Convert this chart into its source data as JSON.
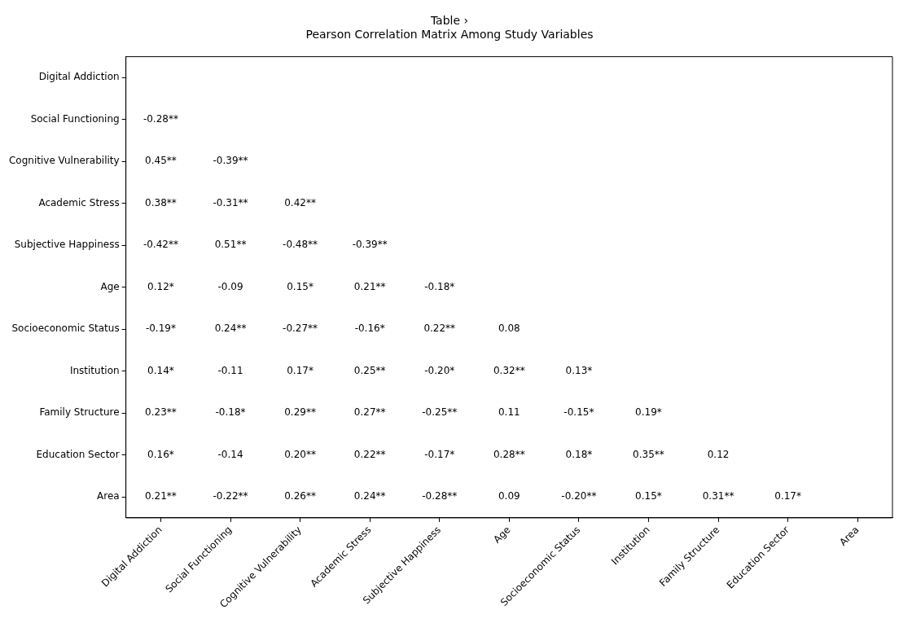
{
  "chart_data": {
    "type": "heatmap",
    "title": "Table ›",
    "subtitle": "Pearson Correlation Matrix Among Study Variables",
    "categories": [
      "Digital Addiction",
      "Social Functioning",
      "Cognitive Vulnerability",
      "Academic Stress",
      "Subjective Happiness",
      "Age",
      "Socioeconomic Status",
      "Institution",
      "Family Structure",
      "Education Sector",
      "Area"
    ],
    "y_categories": [
      "Digital Addiction",
      "Social Functioning",
      "Cognitive Vulnerability",
      "Academic Stress",
      "Subjective Happiness",
      "Age",
      "Socioeconomic Status",
      "Institution",
      "Family Structure",
      "Education Sector",
      "Area"
    ],
    "cells": [
      [
        null,
        null,
        null,
        null,
        null,
        null,
        null,
        null,
        null,
        null,
        null
      ],
      [
        -0.28,
        null,
        null,
        null,
        null,
        null,
        null,
        null,
        null,
        null,
        null
      ],
      [
        0.45,
        -0.39,
        null,
        null,
        null,
        null,
        null,
        null,
        null,
        null,
        null
      ],
      [
        0.38,
        -0.31,
        0.42,
        null,
        null,
        null,
        null,
        null,
        null,
        null,
        null
      ],
      [
        -0.42,
        0.51,
        -0.48,
        -0.39,
        null,
        null,
        null,
        null,
        null,
        null,
        null
      ],
      [
        0.12,
        -0.09,
        0.15,
        0.21,
        -0.18,
        null,
        null,
        null,
        null,
        null,
        null
      ],
      [
        -0.19,
        0.24,
        -0.27,
        -0.16,
        0.22,
        0.08,
        null,
        null,
        null,
        null,
        null
      ],
      [
        0.14,
        -0.11,
        0.17,
        0.25,
        -0.2,
        0.32,
        0.13,
        null,
        null,
        null,
        null
      ],
      [
        0.23,
        -0.18,
        0.29,
        0.27,
        -0.25,
        0.11,
        -0.15,
        0.19,
        null,
        null,
        null
      ],
      [
        0.16,
        -0.14,
        0.2,
        0.22,
        -0.17,
        0.28,
        0.18,
        0.35,
        0.12,
        null,
        null
      ],
      [
        0.21,
        -0.22,
        0.26,
        0.24,
        -0.28,
        0.09,
        -0.2,
        0.15,
        0.31,
        0.17,
        null
      ]
    ],
    "cell_labels": [
      [
        null,
        null,
        null,
        null,
        null,
        null,
        null,
        null,
        null,
        null,
        null
      ],
      [
        "-0.28**",
        null,
        null,
        null,
        null,
        null,
        null,
        null,
        null,
        null,
        null
      ],
      [
        "0.45**",
        "-0.39**",
        null,
        null,
        null,
        null,
        null,
        null,
        null,
        null,
        null
      ],
      [
        "0.38**",
        "-0.31**",
        "0.42**",
        null,
        null,
        null,
        null,
        null,
        null,
        null,
        null
      ],
      [
        "-0.42**",
        "0.51**",
        "-0.48**",
        "-0.39**",
        null,
        null,
        null,
        null,
        null,
        null,
        null
      ],
      [
        "0.12*",
        "-0.09",
        "0.15*",
        "0.21**",
        "-0.18*",
        null,
        null,
        null,
        null,
        null,
        null
      ],
      [
        "-0.19*",
        "0.24**",
        "-0.27**",
        "-0.16*",
        "0.22**",
        "0.08",
        null,
        null,
        null,
        null,
        null
      ],
      [
        "0.14*",
        "-0.11",
        "0.17*",
        "0.25**",
        "-0.20*",
        "0.32**",
        "0.13*",
        null,
        null,
        null,
        null
      ],
      [
        "0.23**",
        "-0.18*",
        "0.29**",
        "0.27**",
        "-0.25**",
        "0.11",
        "-0.15*",
        "0.19*",
        null,
        null,
        null
      ],
      [
        "0.16*",
        "-0.14",
        "0.20**",
        "0.22**",
        "-0.17*",
        "0.28**",
        "0.18*",
        "0.35**",
        "0.12",
        null,
        null
      ],
      [
        "0.21**",
        "-0.22**",
        "0.26**",
        "0.24**",
        "-0.28**",
        "0.09",
        "-0.20**",
        "0.15*",
        "0.31**",
        "0.17*",
        null
      ]
    ]
  }
}
